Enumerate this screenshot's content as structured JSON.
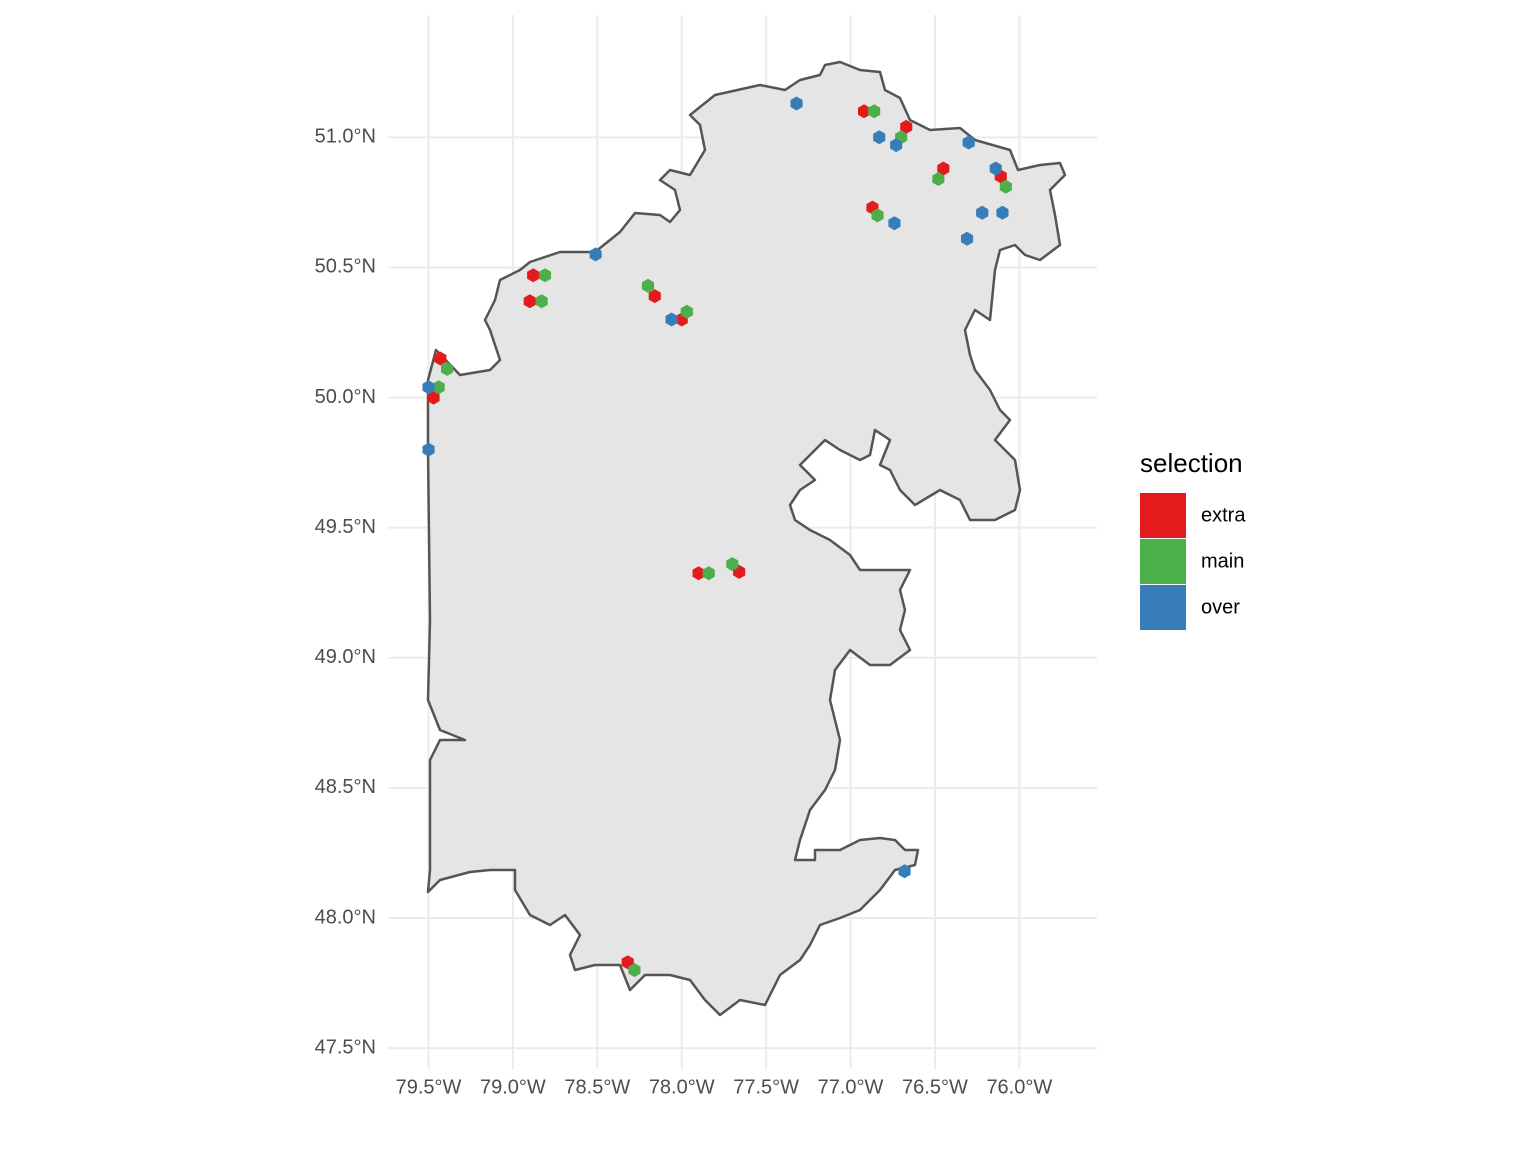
{
  "chart_data": {
    "type": "scatter",
    "xlim": [
      -79.74,
      -75.54
    ],
    "ylim": [
      47.42,
      51.47
    ],
    "grid": true,
    "xticks": [
      {
        "value": -79.5,
        "label": "79.5°W"
      },
      {
        "value": -79.0,
        "label": "79.0°W"
      },
      {
        "value": -78.5,
        "label": "78.5°W"
      },
      {
        "value": -78.0,
        "label": "78.0°W"
      },
      {
        "value": -77.5,
        "label": "77.5°W"
      },
      {
        "value": -77.0,
        "label": "77.0°W"
      },
      {
        "value": -76.5,
        "label": "76.5°W"
      },
      {
        "value": -76.0,
        "label": "76.0°W"
      }
    ],
    "yticks": [
      {
        "value": 47.5,
        "label": "47.5°N"
      },
      {
        "value": 48.0,
        "label": "48.0°N"
      },
      {
        "value": 48.5,
        "label": "48.5°N"
      },
      {
        "value": 49.0,
        "label": "49.0°N"
      },
      {
        "value": 49.5,
        "label": "49.5°N"
      },
      {
        "value": 50.0,
        "label": "50.0°N"
      },
      {
        "value": 50.5,
        "label": "50.5°N"
      },
      {
        "value": 51.0,
        "label": "51.0°N"
      }
    ],
    "legend_title": "selection",
    "series": [
      {
        "name": "extra",
        "color": "#e41a1c",
        "x": [
          -76.92,
          -76.67,
          -76.45,
          -76.11,
          -76.87,
          -78.88,
          -78.9,
          -78.16,
          -78.0,
          -79.43,
          -79.47,
          -77.9,
          -77.66,
          -78.32
        ],
        "y": [
          51.1,
          51.04,
          50.88,
          50.85,
          50.73,
          50.47,
          50.37,
          50.39,
          50.3,
          50.15,
          50.0,
          49.325,
          49.33,
          47.83
        ]
      },
      {
        "name": "main",
        "color": "#4daf4a",
        "x": [
          -76.86,
          -76.7,
          -76.48,
          -76.08,
          -76.84,
          -78.81,
          -78.83,
          -78.2,
          -77.97,
          -79.39,
          -79.44,
          -77.84,
          -77.7,
          -78.28
        ],
        "y": [
          51.1,
          51.0,
          50.84,
          50.81,
          50.7,
          50.47,
          50.37,
          50.43,
          50.33,
          50.11,
          50.04,
          49.325,
          49.36,
          47.8
        ]
      },
      {
        "name": "over",
        "color": "#377eb8",
        "x": [
          -77.32,
          -76.83,
          -76.73,
          -76.3,
          -76.14,
          -76.22,
          -76.1,
          -76.74,
          -76.31,
          -78.51,
          -78.06,
          -79.5,
          -79.5,
          -76.68
        ],
        "y": [
          51.13,
          51.0,
          50.97,
          50.98,
          50.88,
          50.71,
          50.71,
          50.67,
          50.61,
          50.55,
          50.3,
          50.04,
          49.8,
          48.18
        ]
      }
    ]
  }
}
